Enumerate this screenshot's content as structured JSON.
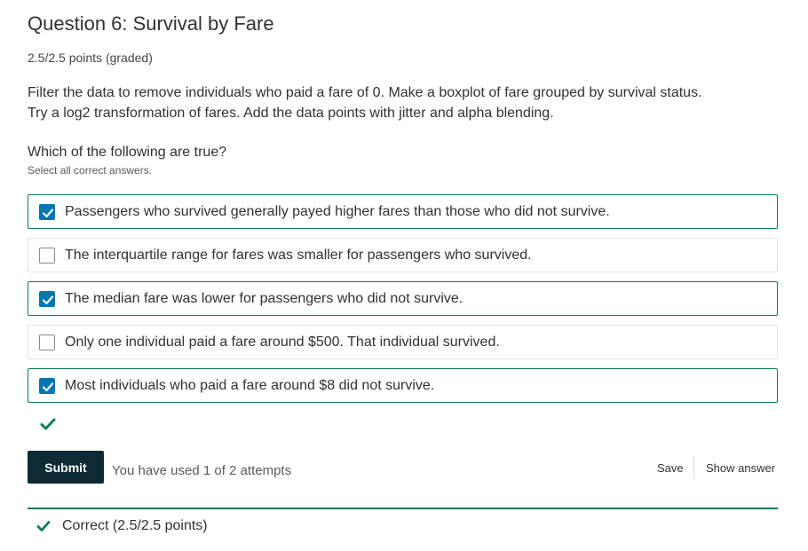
{
  "problem": {
    "title": "Question 6: Survival by Fare",
    "points": "2.5/2.5 points (graded)",
    "prompt_lines": [
      "Filter the data to remove individuals who paid a fare of 0. Make a boxplot of fare grouped by survival status.",
      "Try a log2 transformation of fares. Add the data points with jitter and alpha blending."
    ],
    "question": "Which of the following are true?",
    "hint": "Select all correct answers."
  },
  "choices": [
    {
      "label": "Passengers who survived generally payed higher fares than those who did not survive.",
      "checked": true
    },
    {
      "label": "The interquartile range for fares was smaller for passengers who survived.",
      "checked": false
    },
    {
      "label": "The median fare was lower for passengers who did not survive.",
      "checked": true
    },
    {
      "label": "Only one individual paid a fare around $500. That individual survived.",
      "checked": false
    },
    {
      "label": "Most individuals who paid a fare around $8 did not survive.",
      "checked": true
    }
  ],
  "actions": {
    "submit_label": "Submit",
    "attempts_text": "You have used 1 of 2 attempts",
    "save_label": "Save",
    "show_answer_label": "Show answer"
  },
  "result": {
    "text": "Correct (2.5/2.5 points)"
  },
  "colors": {
    "accent_green": "#0d7d4d",
    "checkbox_blue": "#0075b4",
    "submit_bg": "#0e2b35"
  },
  "icons": {
    "status": "checkmark-icon",
    "checkbox": "checkbox-check-icon"
  }
}
